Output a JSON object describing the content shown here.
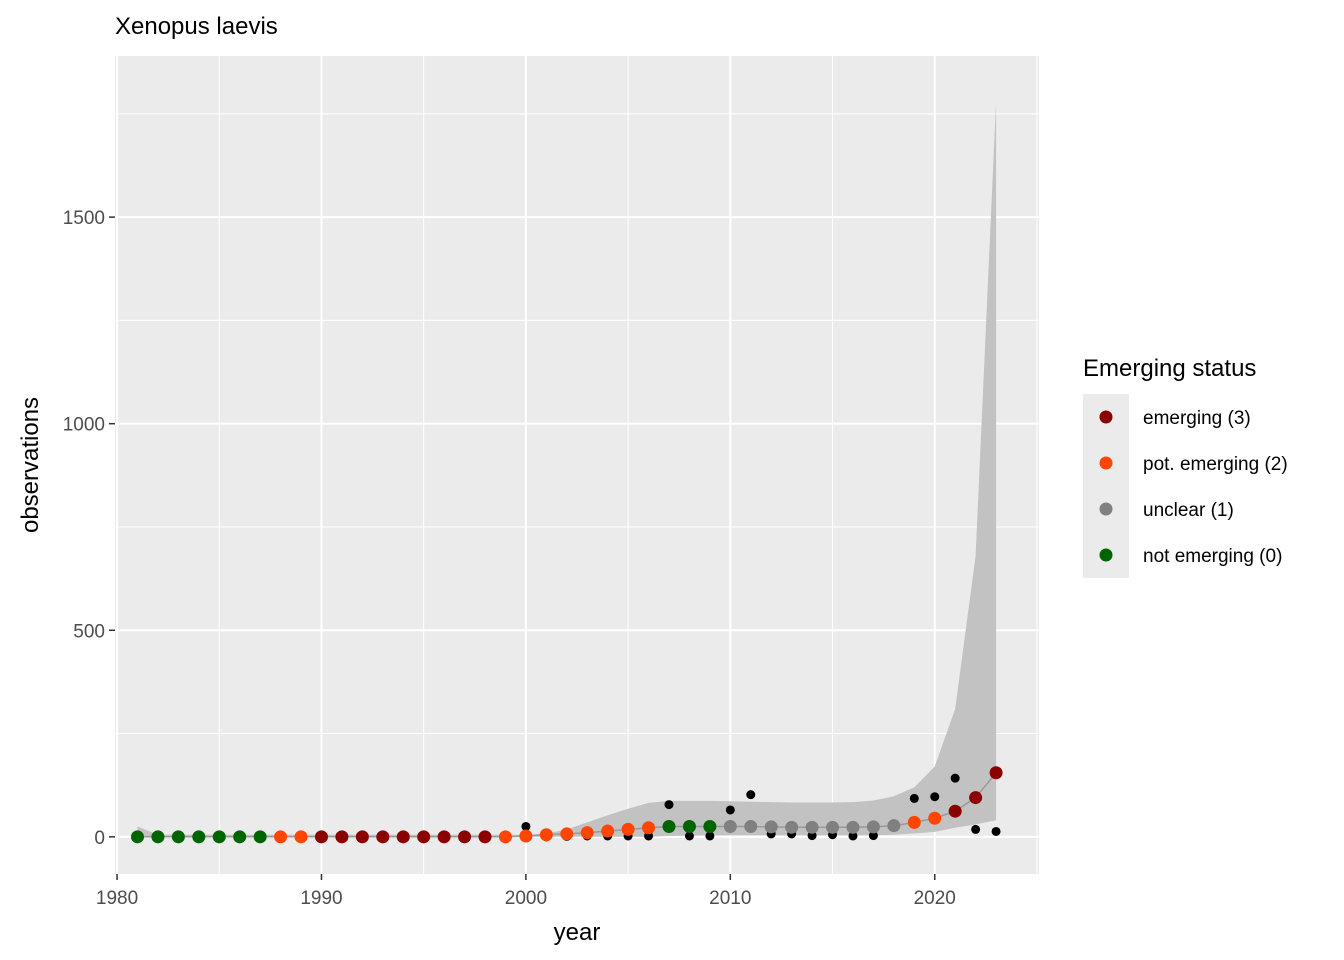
{
  "chart_data": {
    "type": "scatter",
    "title": "Xenopus laevis",
    "xlabel": "year",
    "ylabel": "observations",
    "xlim": [
      1979.9,
      2025.1
    ],
    "ylim": [
      -90,
      1890
    ],
    "x_ticks": [
      1980,
      1990,
      2000,
      2010,
      2020
    ],
    "y_ticks": [
      0,
      500,
      1000,
      1500
    ],
    "x_tick_labels": [
      "1980",
      "1990",
      "2000",
      "2010",
      "2020"
    ],
    "y_tick_labels": [
      "0",
      "500",
      "1000",
      "1500"
    ],
    "grid": true,
    "legend": {
      "title": "Emerging status",
      "placement": "right",
      "entries": [
        {
          "label": "emerging (3)",
          "color": "#8b0000"
        },
        {
          "label": "pot. emerging (2)",
          "color": "#ff4500"
        },
        {
          "label": "unclear (1)",
          "color": "#808080"
        },
        {
          "label": "not emerging (0)",
          "color": "#006400"
        }
      ]
    },
    "colors": {
      "panel": "#ebebeb",
      "grid": "#ffffff",
      "ribbon": "#c2c2c2",
      "line": "#999999",
      "observed": "#000000"
    },
    "confidence_band": {
      "years": [
        1981,
        1982,
        1983,
        1984,
        1985,
        1986,
        1987,
        1988,
        1989,
        1990,
        1991,
        1992,
        1993,
        1994,
        1995,
        1996,
        1997,
        1998,
        1999,
        2000,
        2001,
        2002,
        2003,
        2004,
        2005,
        2006,
        2007,
        2008,
        2009,
        2010,
        2011,
        2012,
        2013,
        2014,
        2015,
        2016,
        2017,
        2018,
        2019,
        2020,
        2021,
        2022,
        2023
      ],
      "lower": [
        0,
        0,
        0,
        0,
        0,
        0,
        0,
        0,
        0,
        0,
        0,
        0,
        0,
        0,
        0,
        0,
        0,
        0,
        0,
        0,
        0,
        0,
        0,
        0,
        0,
        0,
        2,
        3,
        4,
        4,
        4,
        4,
        4,
        4,
        4,
        4,
        4,
        5,
        8,
        12,
        22,
        30,
        40
      ],
      "upper": [
        25,
        5,
        5,
        5,
        5,
        5,
        5,
        5,
        5,
        5,
        5,
        5,
        5,
        5,
        5,
        5,
        5,
        5,
        5,
        5,
        8,
        18,
        35,
        52,
        68,
        82,
        87,
        87,
        87,
        86,
        85,
        84,
        83,
        83,
        83,
        84,
        88,
        98,
        120,
        170,
        310,
        680,
        1780
      ]
    },
    "observed": {
      "name": "observations",
      "x": [
        1981,
        1982,
        1983,
        1984,
        1985,
        1986,
        1987,
        1988,
        1989,
        1990,
        1991,
        1992,
        1993,
        1994,
        1995,
        1996,
        1997,
        1998,
        1999,
        2000,
        2001,
        2002,
        2003,
        2004,
        2005,
        2006,
        2007,
        2008,
        2009,
        2010,
        2011,
        2012,
        2013,
        2014,
        2015,
        2016,
        2017,
        2018,
        2019,
        2020,
        2021,
        2022,
        2023
      ],
      "y": [
        0,
        0,
        0,
        0,
        0,
        0,
        0,
        0,
        0,
        0,
        0,
        0,
        0,
        0,
        0,
        0,
        0,
        0,
        0,
        25,
        0,
        1,
        2,
        2,
        2,
        2,
        78,
        2,
        2,
        65,
        102,
        7,
        7,
        3,
        5,
        2,
        3,
        30,
        93,
        97,
        142,
        18,
        13
      ]
    },
    "series": [
      {
        "name": "not emerging (0)",
        "color": "#006400",
        "x": [
          1981,
          1982,
          1983,
          1984,
          1985,
          1986,
          1987,
          2007,
          2008,
          2009
        ],
        "y": [
          0,
          0,
          0,
          0,
          0,
          0,
          0,
          25,
          25,
          25
        ]
      },
      {
        "name": "pot. emerging (2)",
        "color": "#ff4500",
        "x": [
          1988,
          1989,
          1999,
          2000,
          2001,
          2002,
          2003,
          2004,
          2005,
          2006,
          2019,
          2020
        ],
        "y": [
          0,
          0,
          0,
          2,
          5,
          7,
          10,
          14,
          18,
          22,
          35,
          45
        ]
      },
      {
        "name": "emerging (3)",
        "color": "#8b0000",
        "x": [
          1990,
          1991,
          1992,
          1993,
          1994,
          1995,
          1996,
          1997,
          1998,
          2021,
          2022,
          2023
        ],
        "y": [
          0,
          0,
          0,
          0,
          0,
          0,
          0,
          0,
          0,
          62,
          95,
          155
        ]
      },
      {
        "name": "unclear (1)",
        "color": "#808080",
        "x": [
          2010,
          2011,
          2012,
          2013,
          2014,
          2015,
          2016,
          2017,
          2018
        ],
        "y": [
          25,
          25,
          24,
          23,
          23,
          23,
          23,
          24,
          27
        ]
      }
    ],
    "trend_line": {
      "x": [
        1981,
        1982,
        1983,
        1984,
        1985,
        1986,
        1987,
        1988,
        1989,
        1990,
        1991,
        1992,
        1993,
        1994,
        1995,
        1996,
        1997,
        1998,
        1999,
        2000,
        2001,
        2002,
        2003,
        2004,
        2005,
        2006,
        2007,
        2008,
        2009,
        2010,
        2011,
        2012,
        2013,
        2014,
        2015,
        2016,
        2017,
        2018,
        2019,
        2020,
        2021,
        2022,
        2023
      ],
      "y": [
        0,
        0,
        0,
        0,
        0,
        0,
        0,
        0,
        0,
        0,
        0,
        0,
        0,
        0,
        0,
        0,
        0,
        0,
        0,
        2,
        5,
        7,
        10,
        14,
        18,
        22,
        25,
        25,
        25,
        25,
        25,
        24,
        23,
        23,
        23,
        23,
        24,
        27,
        35,
        45,
        62,
        95,
        155
      ]
    }
  }
}
